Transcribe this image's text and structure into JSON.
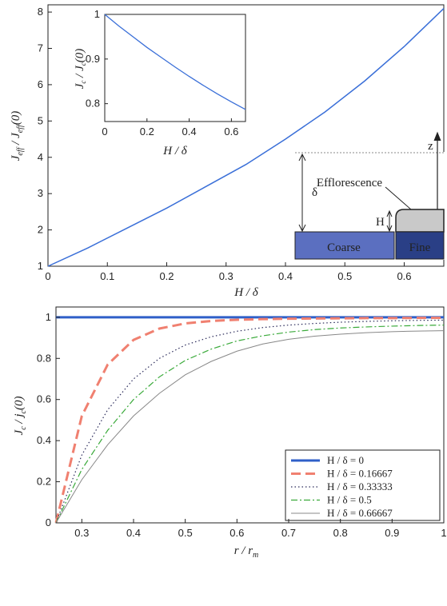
{
  "chart_data": [
    {
      "type": "line",
      "xlabel": "H / δ",
      "ylabel": "J_eff / J_eff(0)",
      "xlim": [
        0,
        0.6667
      ],
      "ylim": [
        1,
        8.2
      ],
      "xticks": [
        "0",
        "0.1",
        "0.2",
        "0.3",
        "0.4",
        "0.5",
        "0.6"
      ],
      "yticks": [
        "1",
        "2",
        "3",
        "4",
        "5",
        "6",
        "7",
        "8"
      ],
      "grid": false,
      "color": "#3a6fd8",
      "series": [
        {
          "x": [
            0,
            0.0667,
            0.1333,
            0.2,
            0.2667,
            0.3333,
            0.4,
            0.4667,
            0.5333,
            0.6,
            0.6667
          ],
          "y": [
            1.0,
            1.5,
            2.05,
            2.6,
            3.2,
            3.8,
            4.5,
            5.25,
            6.1,
            7.05,
            8.1
          ]
        }
      ],
      "schematic": {
        "labels": [
          "Efflorescence",
          "δ",
          "H",
          "Coarse",
          "Fine",
          "z"
        ],
        "colors": {
          "coarse": "#5b6fc0",
          "fine": "#2a3f86",
          "efflorescence": "#c9c9c9"
        }
      }
    },
    {
      "type": "line",
      "xlabel": "H / δ",
      "ylabel": "J_c / J_c(0)",
      "xlim": [
        0,
        0.6667
      ],
      "ylim": [
        0.76,
        1.0
      ],
      "xticks": [
        "0",
        "0.2",
        "0.4",
        "0.6"
      ],
      "yticks": [
        "0.8",
        "0.9",
        "1"
      ],
      "grid": false,
      "color": "#3a6fd8",
      "series": [
        {
          "x": [
            0,
            0.0667,
            0.1333,
            0.2,
            0.2667,
            0.3333,
            0.4,
            0.4667,
            0.5333,
            0.6,
            0.6667
          ],
          "y": [
            1.0,
            0.974,
            0.95,
            0.926,
            0.904,
            0.882,
            0.861,
            0.841,
            0.822,
            0.804,
            0.787
          ]
        }
      ]
    },
    {
      "type": "line",
      "xlabel": "r / r_m",
      "ylabel": "J_c / j_c(0)",
      "xlim": [
        0.25,
        1.0
      ],
      "ylim": [
        0,
        1.05
      ],
      "xticks": [
        "0.3",
        "0.4",
        "0.5",
        "0.6",
        "0.7",
        "0.8",
        "0.9",
        "1"
      ],
      "yticks": [
        "0",
        "0.2",
        "0.4",
        "0.6",
        "0.8",
        "1"
      ],
      "grid": false,
      "legend": "bottom-right",
      "x": [
        0.25,
        0.3,
        0.35,
        0.4,
        0.45,
        0.5,
        0.55,
        0.6,
        0.65,
        0.7,
        0.75,
        0.8,
        0.85,
        0.9,
        0.95,
        1.0
      ],
      "series": [
        {
          "name": "H / δ = 0",
          "color": "#2f5fc8",
          "dash": "solid",
          "width": 3,
          "values": [
            1,
            1,
            1,
            1,
            1,
            1,
            1,
            1,
            1,
            1,
            1,
            1,
            1,
            1,
            1,
            1
          ]
        },
        {
          "name": "H / δ = 0.16667",
          "color": "#f08070",
          "dash": "long",
          "width": 3,
          "values": [
            0,
            0.52,
            0.77,
            0.89,
            0.945,
            0.97,
            0.982,
            0.988,
            0.991,
            0.993,
            0.994,
            0.995,
            0.996,
            0.996,
            0.997,
            0.997
          ]
        },
        {
          "name": "H / δ = 0.33333",
          "color": "#2a2a5a",
          "dash": "dot",
          "width": 1.2,
          "values": [
            0,
            0.33,
            0.55,
            0.7,
            0.8,
            0.865,
            0.905,
            0.932,
            0.95,
            0.962,
            0.97,
            0.976,
            0.98,
            0.983,
            0.985,
            0.986
          ]
        },
        {
          "name": "H / δ = 0.5",
          "color": "#3aaa3a",
          "dash": "dashdot",
          "width": 1.2,
          "values": [
            0,
            0.26,
            0.45,
            0.6,
            0.71,
            0.79,
            0.845,
            0.885,
            0.91,
            0.928,
            0.94,
            0.948,
            0.953,
            0.957,
            0.96,
            0.962
          ]
        },
        {
          "name": "H / δ = 0.66667",
          "color": "#888888",
          "dash": "solid",
          "width": 1,
          "values": [
            0,
            0.21,
            0.38,
            0.52,
            0.63,
            0.72,
            0.785,
            0.835,
            0.87,
            0.893,
            0.908,
            0.918,
            0.925,
            0.93,
            0.933,
            0.935
          ]
        }
      ]
    }
  ]
}
